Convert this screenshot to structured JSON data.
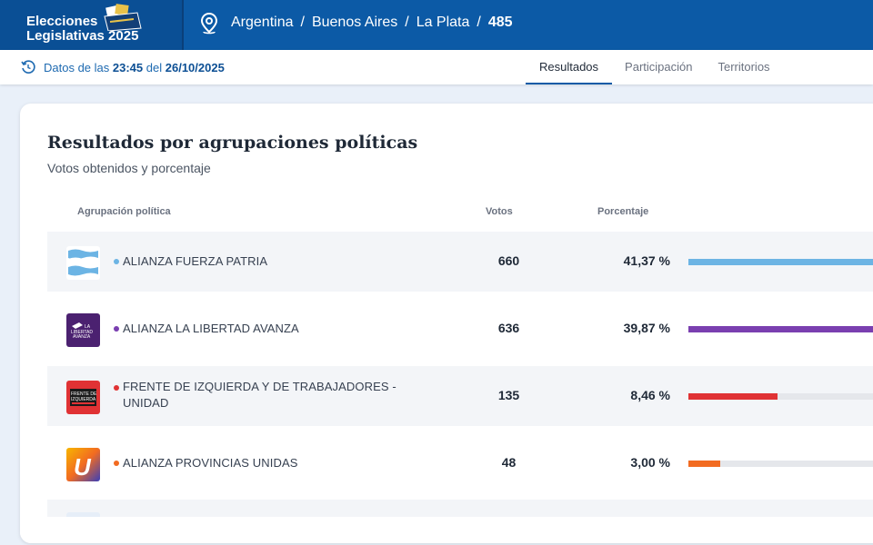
{
  "header": {
    "brand_line1": "Elecciones",
    "brand_line2": "Legislativas 2025",
    "breadcrumb": [
      "Argentina",
      "Buenos Aires",
      "La Plata",
      "485"
    ],
    "icons": [
      "ballot-box-icon",
      "location-pin-icon"
    ],
    "colors": {
      "primary": "#0c5aa6",
      "primary_dark": "#0a4f95"
    }
  },
  "subbar": {
    "prefix": "Datos de las",
    "time": "23:45",
    "middle": "del",
    "date": "26/10/2025",
    "tabs": [
      "Resultados",
      "Participación",
      "Territorios"
    ],
    "active_tab": "Resultados"
  },
  "card": {
    "title": "Resultados por agrupaciones políticas",
    "subtitle": "Votos obtenidos y porcentaje",
    "columns": {
      "party": "Agrupación política",
      "votes": "Votos",
      "percent": "Porcentaje"
    },
    "rows": [
      {
        "party": "ALIANZA FUERZA PATRIA",
        "votes": "660",
        "percent": "41,37 %",
        "share": 0.4137,
        "color": "#6cb4e4",
        "logo": "argentina-flag-logo"
      },
      {
        "party": "ALIANZA LA LIBERTAD AVANZA",
        "votes": "636",
        "percent": "39,87 %",
        "share": 0.3987,
        "color": "#7a3fb0",
        "logo": "la-libertad-avanza-logo"
      },
      {
        "party": "FRENTE DE IZQUIERDA Y DE TRABAJADORES - UNIDAD",
        "votes": "135",
        "percent": "8,46 %",
        "share": 0.0846,
        "color": "#e03234",
        "logo": "frente-de-izquierda-logo"
      },
      {
        "party": "ALIANZA PROVINCIAS UNIDAS",
        "votes": "48",
        "percent": "3,00 %",
        "share": 0.03,
        "color": "#f26b21",
        "logo": "provincias-unidas-logo"
      }
    ]
  }
}
